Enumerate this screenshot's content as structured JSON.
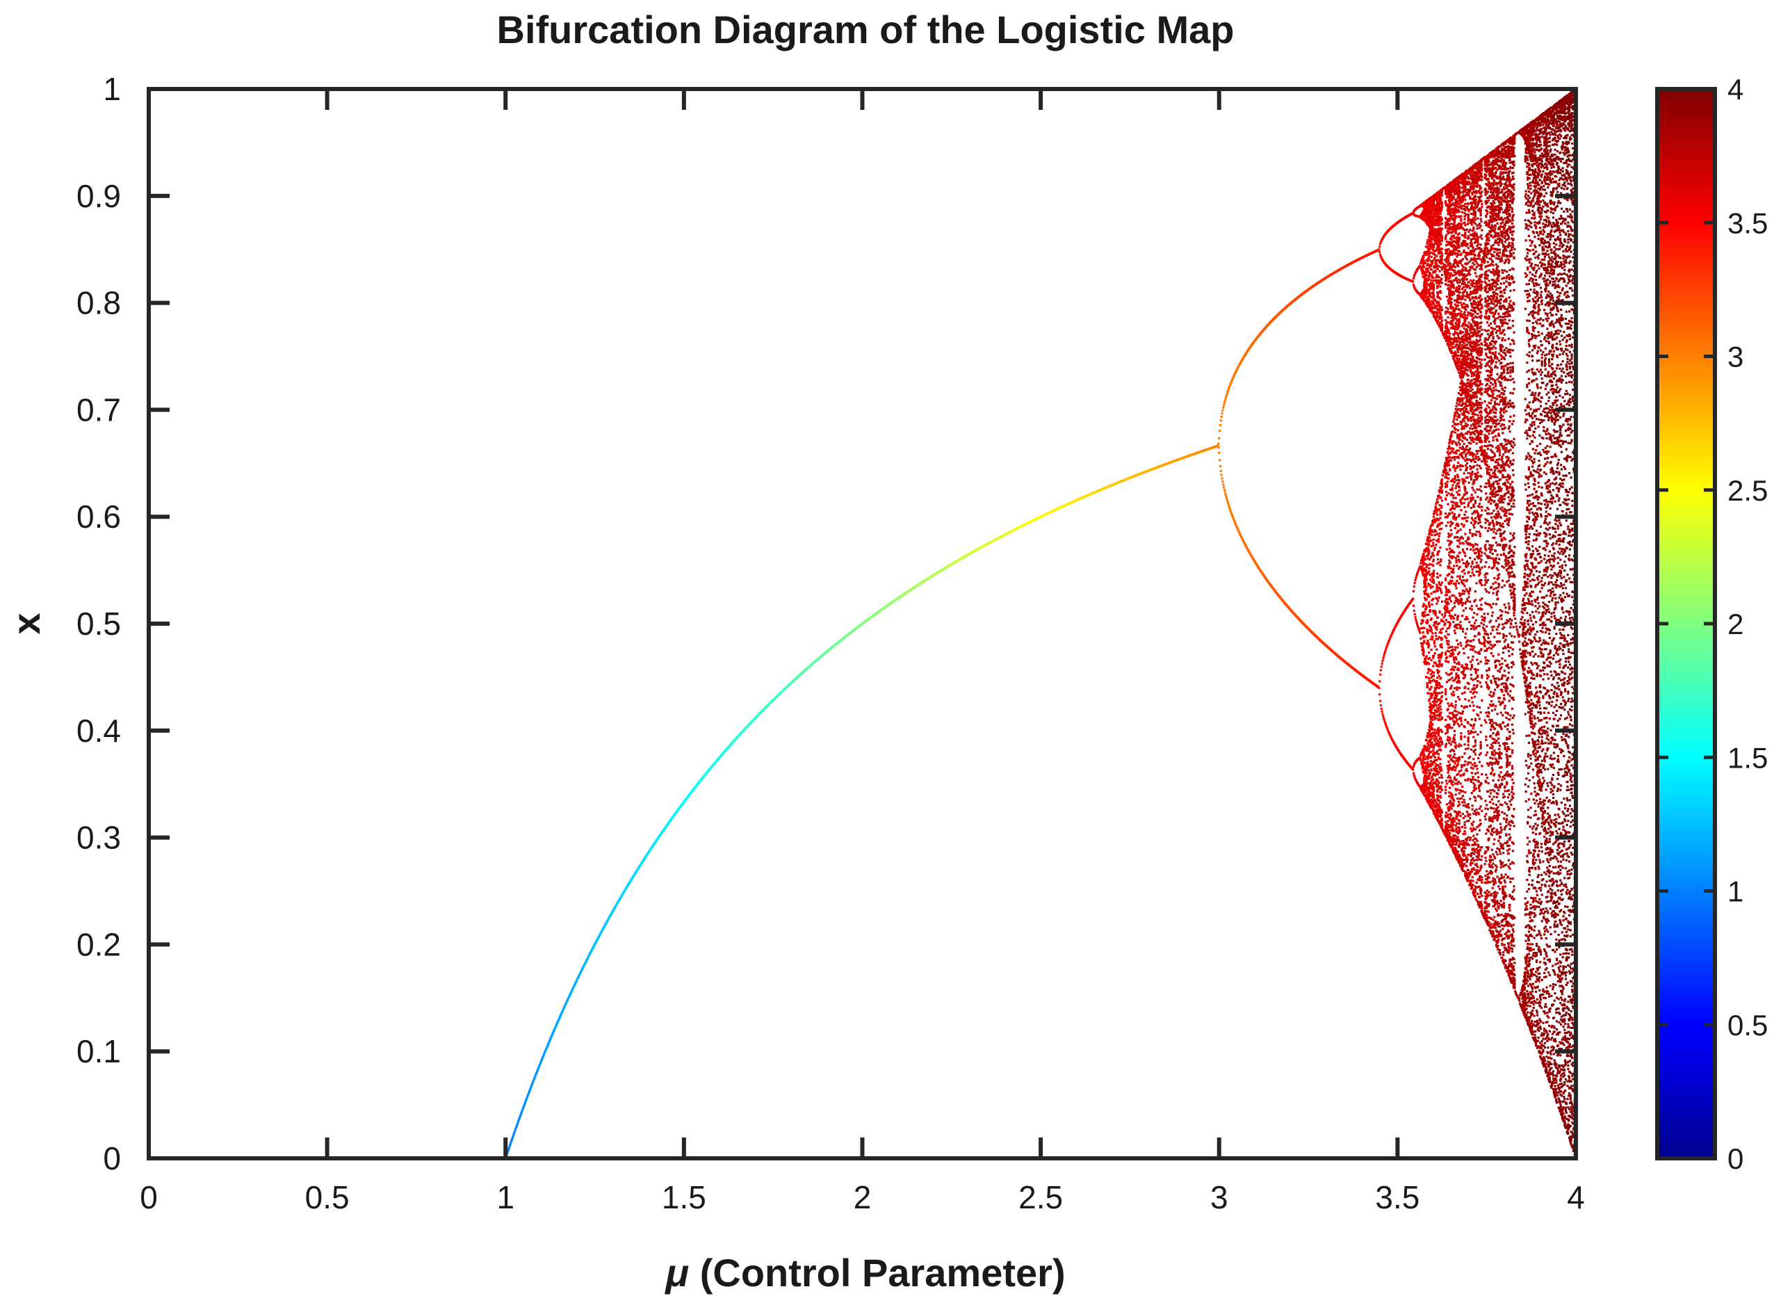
{
  "chart_data": {
    "type": "scatter",
    "title": "Bifurcation Diagram of the Logistic Map",
    "xlabel_symbol": "μ",
    "xlabel_text": " (Control Parameter)",
    "ylabel": "x",
    "xlim": [
      0,
      4
    ],
    "ylim": [
      0,
      1
    ],
    "xticks": [
      0,
      0.5,
      1,
      1.5,
      2,
      2.5,
      3,
      3.5,
      4
    ],
    "xtick_labels": [
      "0",
      "0.5",
      "1",
      "1.5",
      "2",
      "2.5",
      "3",
      "3.5",
      "4"
    ],
    "yticks": [
      0,
      0.1,
      0.2,
      0.3,
      0.4,
      0.5,
      0.6,
      0.7,
      0.8,
      0.9,
      1
    ],
    "ytick_labels": [
      "0",
      "0.1",
      "0.2",
      "0.3",
      "0.4",
      "0.5",
      "0.6",
      "0.7",
      "0.8",
      "0.9",
      "1"
    ],
    "grid": false,
    "box": true,
    "series": [
      {
        "kind": "stable_fixed_point",
        "formula": "x = 0 for μ ≤ 1; x = 1 - 1/μ for 1 < μ ≤ 3",
        "points": [
          [
            0,
            0
          ],
          [
            0.5,
            0
          ],
          [
            1,
            0
          ],
          [
            1.25,
            0.2
          ],
          [
            1.5,
            0.333
          ],
          [
            1.75,
            0.429
          ],
          [
            2,
            0.5
          ],
          [
            2.25,
            0.556
          ],
          [
            2.5,
            0.6
          ],
          [
            2.75,
            0.636
          ],
          [
            3,
            0.667
          ]
        ]
      },
      {
        "kind": "period_2",
        "mu_range": [
          3,
          3.449
        ],
        "upper_branch": [
          [
            3,
            0.667
          ],
          [
            3.1,
            0.765
          ],
          [
            3.2,
            0.799
          ],
          [
            3.3,
            0.824
          ],
          [
            3.449,
            0.849
          ]
        ],
        "lower_branch": [
          [
            3,
            0.667
          ],
          [
            3.1,
            0.558
          ],
          [
            3.2,
            0.513
          ],
          [
            3.3,
            0.479
          ],
          [
            3.449,
            0.44
          ]
        ]
      },
      {
        "kind": "period_4_and_chaos",
        "mu_range": [
          3.449,
          4
        ],
        "period_4_onset": 3.449,
        "period_8_onset": 3.544,
        "onset_of_chaos": 3.5699,
        "period_3_window": [
          3.8284,
          3.8415
        ],
        "x_envelope": [
          0,
          1
        ]
      }
    ],
    "colorbar": {
      "colormap": "jet",
      "maps": "μ",
      "range": [
        0,
        4
      ],
      "ticks": [
        0,
        0.5,
        1,
        1.5,
        2,
        2.5,
        3,
        3.5,
        4
      ],
      "tick_labels": [
        "0",
        "0.5",
        "1",
        "1.5",
        "2",
        "2.5",
        "3",
        "3.5",
        "4"
      ],
      "colors": [
        "#00008f",
        "#0000ff",
        "#0080ff",
        "#00ffff",
        "#80ff80",
        "#ffff00",
        "#ff8000",
        "#ff0000",
        "#800000"
      ]
    }
  }
}
